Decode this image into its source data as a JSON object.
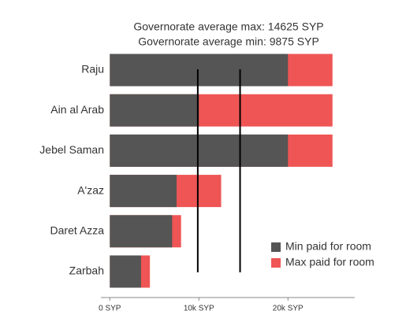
{
  "chart_data": {
    "type": "bar",
    "orientation": "horizontal",
    "annotations": [
      "Governorate average max: 14625 SYP",
      "Governorate average min: 9875 SYP"
    ],
    "categories": [
      "Raju",
      "Ain al Arab",
      "Jebel Saman",
      "A'zaz",
      "Daret Azza",
      "Zarbah"
    ],
    "series": [
      {
        "name": "Min paid for room",
        "color": "#555555",
        "values": [
          20000,
          10000,
          20000,
          7500,
          7000,
          3500
        ]
      },
      {
        "name": "Max paid for room",
        "color": "#ef5555",
        "values": [
          25000,
          25000,
          25000,
          12500,
          8000,
          4500
        ]
      }
    ],
    "reference_lines": [
      {
        "value": 9875
      },
      {
        "value": 14625
      }
    ],
    "xlim": [
      -1000,
      27500
    ],
    "xticks": [
      {
        "value": 0,
        "label": "0 SYP"
      },
      {
        "value": 10000,
        "label": "10k SYP"
      },
      {
        "value": 20000,
        "label": "20k SYP"
      }
    ],
    "legend": "lower right"
  }
}
